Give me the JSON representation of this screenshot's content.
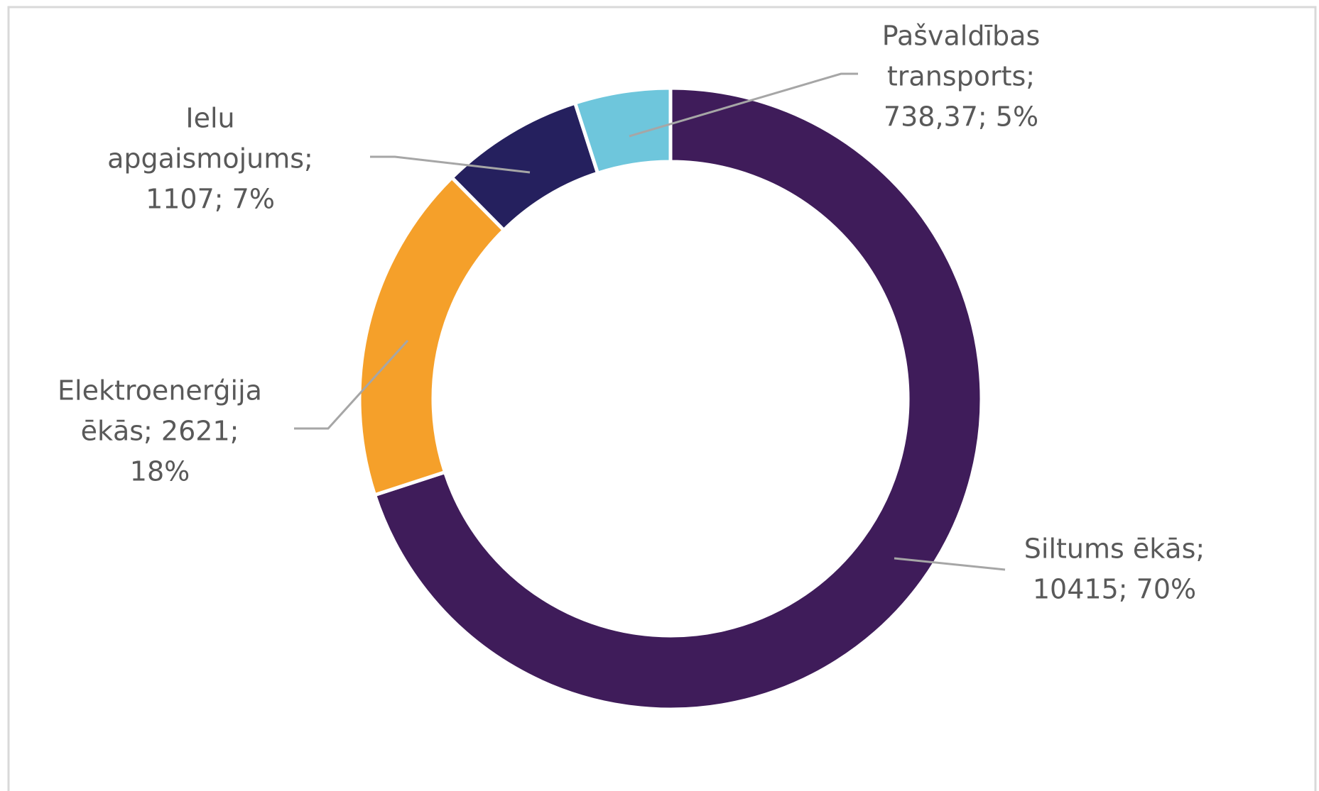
{
  "chart_data": {
    "type": "donut",
    "labels": [
      [
        "Siltums ēkās;",
        "10415; 70%"
      ],
      [
        "Elektroenerģija",
        "ēkās; 2621;",
        "18%"
      ],
      [
        "Ielu",
        "apgaismojums;",
        "1107; 7%"
      ],
      [
        "Pašvaldības",
        "transports;",
        "738,37; 5%"
      ]
    ],
    "values": [
      10415,
      2621,
      1107,
      738.37
    ],
    "colors": [
      "#3f1c5a",
      "#f5a02a",
      "#25205e",
      "#6ec6dc"
    ]
  }
}
